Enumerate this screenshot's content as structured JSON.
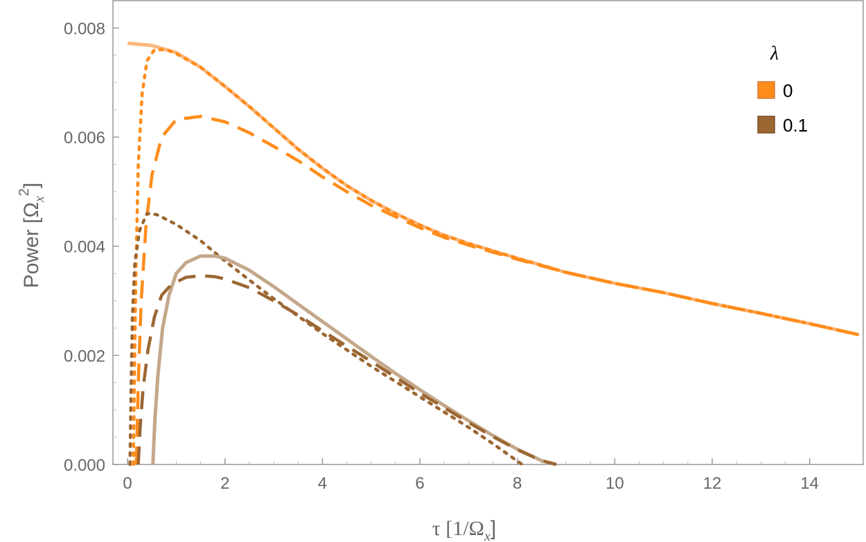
{
  "chart_data": {
    "type": "line",
    "xlabel": {
      "pre": "τ [1/Ω",
      "sub": "x",
      "post": "]"
    },
    "ylabel": {
      "pre": "Power [Ω",
      "sub": "x",
      "sup": "2",
      "post": "]"
    },
    "xlim": [
      -0.3,
      15.1
    ],
    "ylim": [
      0,
      0.0085
    ],
    "x_ticks": [
      0,
      2,
      4,
      6,
      8,
      10,
      12,
      14
    ],
    "y_ticks": [
      0.0,
      0.002,
      0.004,
      0.006,
      0.008
    ],
    "x_tick_labels": [
      "0",
      "2",
      "4",
      "6",
      "8",
      "10",
      "12",
      "14"
    ],
    "y_tick_labels": [
      "0.000",
      "0.002",
      "0.004",
      "0.006",
      "0.008"
    ],
    "grid": false,
    "legend": {
      "title": "λ",
      "placement": "top-right",
      "entries": [
        {
          "label": "0",
          "color": "#ff8c1a"
        },
        {
          "label": "0.1",
          "color": "#9c6632"
        }
      ]
    },
    "series": [
      {
        "lambda": "0",
        "style": "solid",
        "color": "#fbb77c",
        "points": [
          [
            0,
            0.00772
          ],
          [
            0.5,
            0.00768
          ],
          [
            1,
            0.00755
          ],
          [
            1.5,
            0.00728
          ],
          [
            2,
            0.00693
          ],
          [
            2.5,
            0.00656
          ],
          [
            3,
            0.00617
          ],
          [
            3.5,
            0.00578
          ],
          [
            4,
            0.00543
          ],
          [
            4.5,
            0.00511
          ],
          [
            5,
            0.00484
          ],
          [
            5.5,
            0.0046
          ],
          [
            6,
            0.00439
          ],
          [
            6.5,
            0.0042
          ],
          [
            7,
            0.00405
          ],
          [
            8,
            0.00378
          ],
          [
            9,
            0.00352
          ],
          [
            10,
            0.00332
          ],
          [
            11,
            0.00315
          ],
          [
            12,
            0.00295
          ],
          [
            13,
            0.00277
          ],
          [
            14,
            0.00258
          ],
          [
            15,
            0.00238
          ]
        ]
      },
      {
        "lambda": "0",
        "style": "dotted",
        "color": "#ff8c1a",
        "points": [
          [
            0.12,
            0
          ],
          [
            0.14,
            0.0015
          ],
          [
            0.17,
            0.0035
          ],
          [
            0.22,
            0.0055
          ],
          [
            0.3,
            0.0068
          ],
          [
            0.4,
            0.0074
          ],
          [
            0.55,
            0.0076
          ],
          [
            0.8,
            0.0076
          ],
          [
            1,
            0.00753
          ],
          [
            1.5,
            0.00728
          ],
          [
            2,
            0.00693
          ],
          [
            2.5,
            0.00656
          ],
          [
            3,
            0.00617
          ],
          [
            3.5,
            0.00578
          ],
          [
            4,
            0.00543
          ],
          [
            4.5,
            0.00511
          ],
          [
            5,
            0.00484
          ],
          [
            5.5,
            0.0046
          ],
          [
            6,
            0.00439
          ],
          [
            6.5,
            0.0042
          ],
          [
            7,
            0.00405
          ],
          [
            8,
            0.00378
          ],
          [
            9,
            0.00352
          ],
          [
            10,
            0.00332
          ],
          [
            11,
            0.00315
          ],
          [
            12,
            0.00295
          ],
          [
            13,
            0.00277
          ],
          [
            14,
            0.00258
          ],
          [
            15,
            0.00238
          ]
        ]
      },
      {
        "lambda": "0",
        "style": "dashed",
        "color": "#ff8c1a",
        "points": [
          [
            0.18,
            0
          ],
          [
            0.22,
            0.0015
          ],
          [
            0.28,
            0.003
          ],
          [
            0.38,
            0.0044
          ],
          [
            0.5,
            0.0053
          ],
          [
            0.7,
            0.006
          ],
          [
            1,
            0.00632
          ],
          [
            1.5,
            0.00638
          ],
          [
            2,
            0.00628
          ],
          [
            2.5,
            0.00608
          ],
          [
            3,
            0.00583
          ],
          [
            3.5,
            0.00557
          ],
          [
            4,
            0.00527
          ],
          [
            4.5,
            0.005
          ],
          [
            5,
            0.00475
          ],
          [
            5.5,
            0.00454
          ],
          [
            6,
            0.00434
          ],
          [
            6.5,
            0.00416
          ],
          [
            7,
            0.00402
          ],
          [
            8,
            0.00376
          ],
          [
            9,
            0.00352
          ],
          [
            10,
            0.00332
          ],
          [
            11,
            0.00315
          ],
          [
            12,
            0.00295
          ],
          [
            13,
            0.00277
          ],
          [
            14,
            0.00258
          ],
          [
            15,
            0.00238
          ]
        ]
      },
      {
        "lambda": "0.1",
        "style": "dotted",
        "color": "#9c6632",
        "points": [
          [
            0.05,
            0
          ],
          [
            0.07,
            0.0012
          ],
          [
            0.1,
            0.0027
          ],
          [
            0.15,
            0.0037
          ],
          [
            0.25,
            0.0043
          ],
          [
            0.4,
            0.0046
          ],
          [
            0.6,
            0.00458
          ],
          [
            1,
            0.0044
          ],
          [
            1.5,
            0.0041
          ],
          [
            2,
            0.00373
          ],
          [
            2.5,
            0.00338
          ],
          [
            3,
            0.00304
          ],
          [
            3.5,
            0.00272
          ],
          [
            4,
            0.0024
          ],
          [
            4.5,
            0.0021
          ],
          [
            5,
            0.0018
          ],
          [
            5.5,
            0.00152
          ],
          [
            6,
            0.00124
          ],
          [
            6.5,
            0.00096
          ],
          [
            7,
            0.00068
          ],
          [
            7.5,
            0.00038
          ],
          [
            8.1,
            0
          ]
        ]
      },
      {
        "lambda": "0.1",
        "style": "solid",
        "color": "#c4a88a",
        "points": [
          [
            0.52,
            0
          ],
          [
            0.56,
            0.0008
          ],
          [
            0.62,
            0.0016
          ],
          [
            0.72,
            0.0025
          ],
          [
            0.85,
            0.0031
          ],
          [
            1,
            0.0035
          ],
          [
            1.2,
            0.0037
          ],
          [
            1.5,
            0.00382
          ],
          [
            1.8,
            0.00382
          ],
          [
            2,
            0.00378
          ],
          [
            2.5,
            0.00356
          ],
          [
            3,
            0.00326
          ],
          [
            3.5,
            0.00294
          ],
          [
            4,
            0.00262
          ],
          [
            4.5,
            0.0023
          ],
          [
            5,
            0.00198
          ],
          [
            5.5,
            0.00167
          ],
          [
            6,
            0.00137
          ],
          [
            6.5,
            0.00108
          ],
          [
            7,
            0.0008
          ],
          [
            7.5,
            0.00053
          ],
          [
            8,
            0.00028
          ],
          [
            8.5,
            7e-05
          ],
          [
            8.8,
            0
          ]
        ]
      },
      {
        "lambda": "0.1",
        "style": "dashed",
        "color": "#9c6632",
        "points": [
          [
            0.22,
            0
          ],
          [
            0.26,
            0.0007
          ],
          [
            0.32,
            0.0014
          ],
          [
            0.42,
            0.0021
          ],
          [
            0.55,
            0.0027
          ],
          [
            0.7,
            0.0031
          ],
          [
            0.9,
            0.0033
          ],
          [
            1.2,
            0.00343
          ],
          [
            1.5,
            0.00346
          ],
          [
            1.8,
            0.00344
          ],
          [
            2,
            0.0034
          ],
          [
            2.5,
            0.00324
          ],
          [
            3,
            0.003
          ],
          [
            3.5,
            0.00274
          ],
          [
            4,
            0.00245
          ],
          [
            4.5,
            0.00217
          ],
          [
            5,
            0.00189
          ],
          [
            5.5,
            0.0016
          ],
          [
            6,
            0.00131
          ],
          [
            6.5,
            0.00104
          ],
          [
            7,
            0.00077
          ],
          [
            7.5,
            0.00051
          ],
          [
            8,
            0.00027
          ],
          [
            8.5,
            7e-05
          ],
          [
            8.8,
            0
          ]
        ]
      }
    ]
  }
}
